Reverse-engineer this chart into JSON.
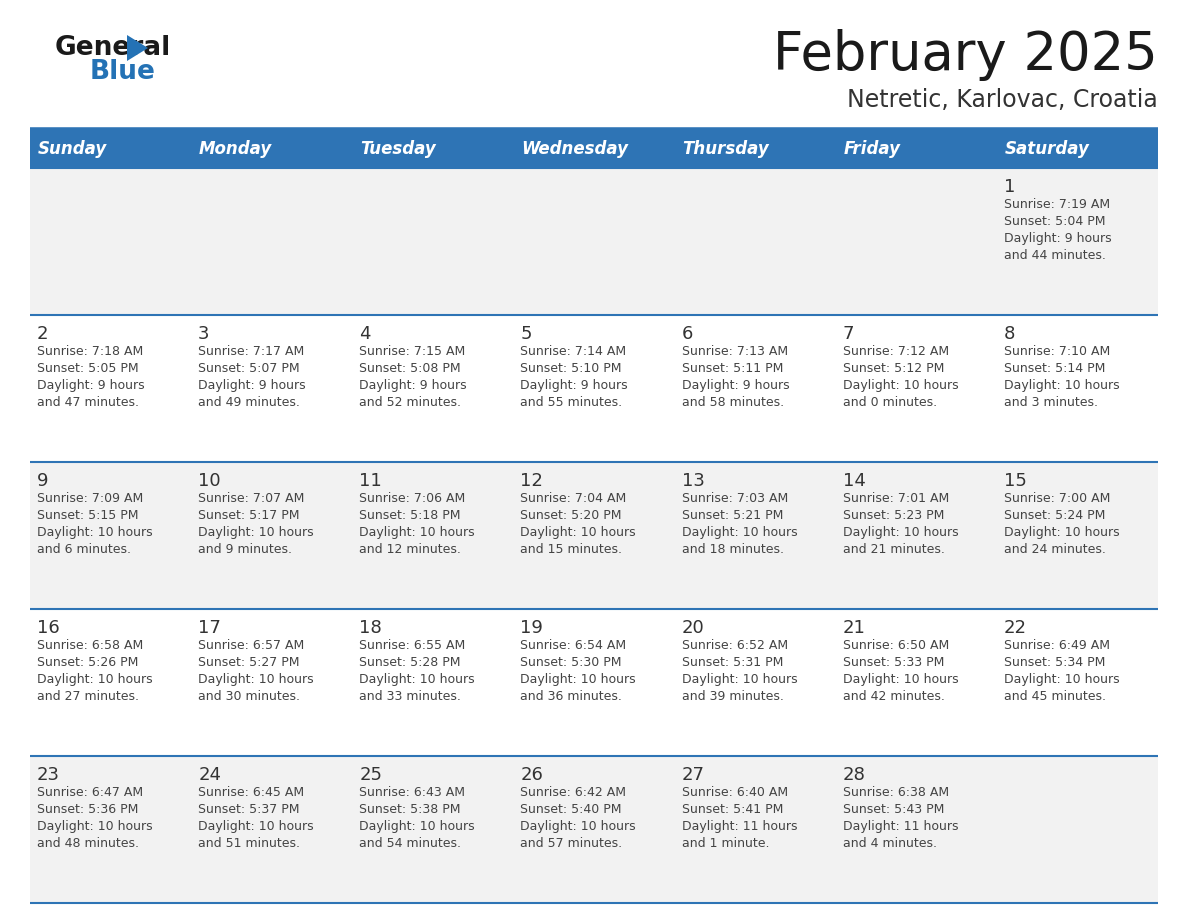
{
  "title": "February 2025",
  "subtitle": "Netretic, Karlovac, Croatia",
  "days_of_week": [
    "Sunday",
    "Monday",
    "Tuesday",
    "Wednesday",
    "Thursday",
    "Friday",
    "Saturday"
  ],
  "header_bg": "#2E74B5",
  "header_text": "#FFFFFF",
  "cell_bg_light": "#F2F2F2",
  "cell_bg_white": "#FFFFFF",
  "separator_color": "#2E74B5",
  "day_number_color": "#333333",
  "cell_text_color": "#444444",
  "title_color": "#1A1A1A",
  "subtitle_color": "#333333",
  "logo_general_color": "#1A1A1A",
  "logo_blue_color": "#2472B5",
  "calendar_data": [
    [
      null,
      null,
      null,
      null,
      null,
      null,
      {
        "day": 1,
        "sunrise": "7:19 AM",
        "sunset": "5:04 PM",
        "daylight": "9 hours and 44 minutes."
      }
    ],
    [
      {
        "day": 2,
        "sunrise": "7:18 AM",
        "sunset": "5:05 PM",
        "daylight": "9 hours and 47 minutes."
      },
      {
        "day": 3,
        "sunrise": "7:17 AM",
        "sunset": "5:07 PM",
        "daylight": "9 hours and 49 minutes."
      },
      {
        "day": 4,
        "sunrise": "7:15 AM",
        "sunset": "5:08 PM",
        "daylight": "9 hours and 52 minutes."
      },
      {
        "day": 5,
        "sunrise": "7:14 AM",
        "sunset": "5:10 PM",
        "daylight": "9 hours and 55 minutes."
      },
      {
        "day": 6,
        "sunrise": "7:13 AM",
        "sunset": "5:11 PM",
        "daylight": "9 hours and 58 minutes."
      },
      {
        "day": 7,
        "sunrise": "7:12 AM",
        "sunset": "5:12 PM",
        "daylight": "10 hours and 0 minutes."
      },
      {
        "day": 8,
        "sunrise": "7:10 AM",
        "sunset": "5:14 PM",
        "daylight": "10 hours and 3 minutes."
      }
    ],
    [
      {
        "day": 9,
        "sunrise": "7:09 AM",
        "sunset": "5:15 PM",
        "daylight": "10 hours and 6 minutes."
      },
      {
        "day": 10,
        "sunrise": "7:07 AM",
        "sunset": "5:17 PM",
        "daylight": "10 hours and 9 minutes."
      },
      {
        "day": 11,
        "sunrise": "7:06 AM",
        "sunset": "5:18 PM",
        "daylight": "10 hours and 12 minutes."
      },
      {
        "day": 12,
        "sunrise": "7:04 AM",
        "sunset": "5:20 PM",
        "daylight": "10 hours and 15 minutes."
      },
      {
        "day": 13,
        "sunrise": "7:03 AM",
        "sunset": "5:21 PM",
        "daylight": "10 hours and 18 minutes."
      },
      {
        "day": 14,
        "sunrise": "7:01 AM",
        "sunset": "5:23 PM",
        "daylight": "10 hours and 21 minutes."
      },
      {
        "day": 15,
        "sunrise": "7:00 AM",
        "sunset": "5:24 PM",
        "daylight": "10 hours and 24 minutes."
      }
    ],
    [
      {
        "day": 16,
        "sunrise": "6:58 AM",
        "sunset": "5:26 PM",
        "daylight": "10 hours and 27 minutes."
      },
      {
        "day": 17,
        "sunrise": "6:57 AM",
        "sunset": "5:27 PM",
        "daylight": "10 hours and 30 minutes."
      },
      {
        "day": 18,
        "sunrise": "6:55 AM",
        "sunset": "5:28 PM",
        "daylight": "10 hours and 33 minutes."
      },
      {
        "day": 19,
        "sunrise": "6:54 AM",
        "sunset": "5:30 PM",
        "daylight": "10 hours and 36 minutes."
      },
      {
        "day": 20,
        "sunrise": "6:52 AM",
        "sunset": "5:31 PM",
        "daylight": "10 hours and 39 minutes."
      },
      {
        "day": 21,
        "sunrise": "6:50 AM",
        "sunset": "5:33 PM",
        "daylight": "10 hours and 42 minutes."
      },
      {
        "day": 22,
        "sunrise": "6:49 AM",
        "sunset": "5:34 PM",
        "daylight": "10 hours and 45 minutes."
      }
    ],
    [
      {
        "day": 23,
        "sunrise": "6:47 AM",
        "sunset": "5:36 PM",
        "daylight": "10 hours and 48 minutes."
      },
      {
        "day": 24,
        "sunrise": "6:45 AM",
        "sunset": "5:37 PM",
        "daylight": "10 hours and 51 minutes."
      },
      {
        "day": 25,
        "sunrise": "6:43 AM",
        "sunset": "5:38 PM",
        "daylight": "10 hours and 54 minutes."
      },
      {
        "day": 26,
        "sunrise": "6:42 AM",
        "sunset": "5:40 PM",
        "daylight": "10 hours and 57 minutes."
      },
      {
        "day": 27,
        "sunrise": "6:40 AM",
        "sunset": "5:41 PM",
        "daylight": "11 hours and 1 minute."
      },
      {
        "day": 28,
        "sunrise": "6:38 AM",
        "sunset": "5:43 PM",
        "daylight": "11 hours and 4 minutes."
      },
      null
    ]
  ]
}
